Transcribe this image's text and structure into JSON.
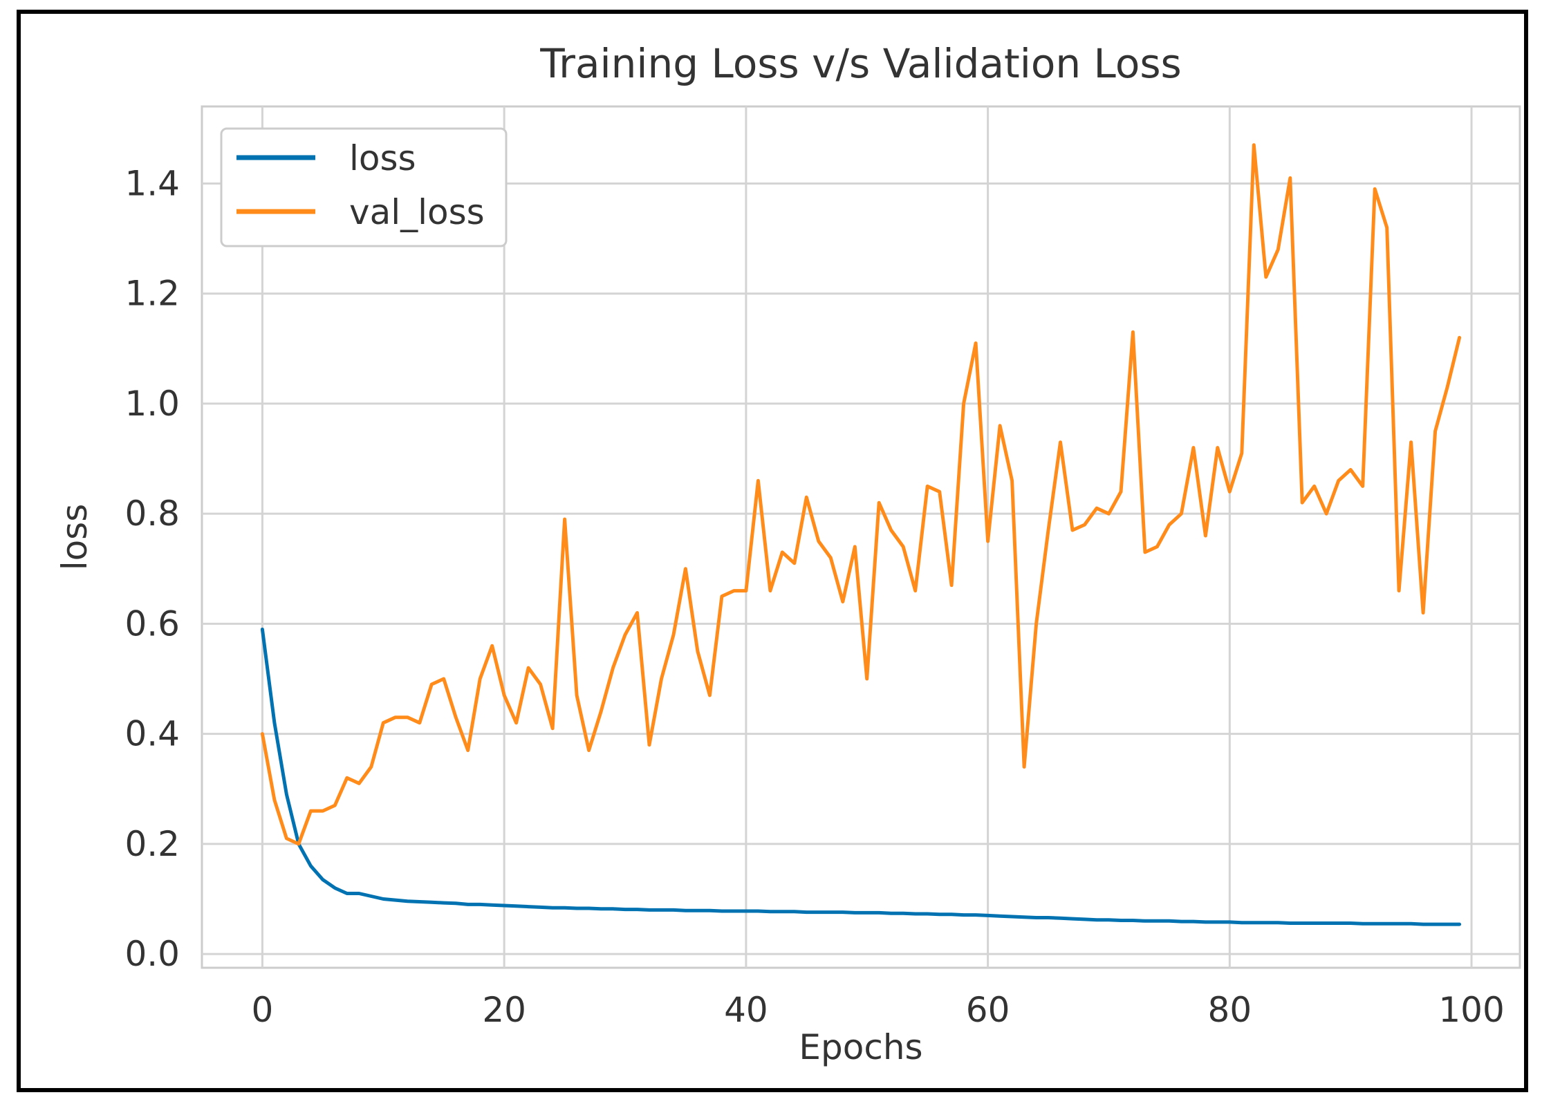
{
  "chart_data": {
    "type": "line",
    "title": "Training Loss v/s Validation Loss",
    "xlabel": "Epochs",
    "ylabel": "loss",
    "xlim": [
      -5,
      104
    ],
    "ylim": [
      -0.025,
      1.54
    ],
    "xticks": [
      0,
      20,
      40,
      60,
      80,
      100
    ],
    "yticks": [
      0.0,
      0.2,
      0.4,
      0.6,
      0.8,
      1.0,
      1.2,
      1.4
    ],
    "xtick_labels": [
      "0",
      "20",
      "40",
      "60",
      "80",
      "100"
    ],
    "ytick_labels": [
      "0.0",
      "0.2",
      "0.4",
      "0.6",
      "0.8",
      "1.0",
      "1.2",
      "1.4"
    ],
    "grid": true,
    "legend_position": "top-left",
    "x": [
      0,
      1,
      2,
      3,
      4,
      5,
      6,
      7,
      8,
      9,
      10,
      11,
      12,
      13,
      14,
      15,
      16,
      17,
      18,
      19,
      20,
      21,
      22,
      23,
      24,
      25,
      26,
      27,
      28,
      29,
      30,
      31,
      32,
      33,
      34,
      35,
      36,
      37,
      38,
      39,
      40,
      41,
      42,
      43,
      44,
      45,
      46,
      47,
      48,
      49,
      50,
      51,
      52,
      53,
      54,
      55,
      56,
      57,
      58,
      59,
      60,
      61,
      62,
      63,
      64,
      65,
      66,
      67,
      68,
      69,
      70,
      71,
      72,
      73,
      74,
      75,
      76,
      77,
      78,
      79,
      80,
      81,
      82,
      83,
      84,
      85,
      86,
      87,
      88,
      89,
      90,
      91,
      92,
      93,
      94,
      95,
      96,
      97,
      98,
      99
    ],
    "series": [
      {
        "name": "loss",
        "color": "#0072B2",
        "values": [
          0.59,
          0.42,
          0.29,
          0.2,
          0.16,
          0.135,
          0.12,
          0.11,
          0.11,
          0.105,
          0.1,
          0.098,
          0.096,
          0.095,
          0.094,
          0.093,
          0.092,
          0.09,
          0.09,
          0.089,
          0.088,
          0.087,
          0.086,
          0.085,
          0.084,
          0.084,
          0.083,
          0.083,
          0.082,
          0.082,
          0.081,
          0.081,
          0.08,
          0.08,
          0.08,
          0.079,
          0.079,
          0.079,
          0.078,
          0.078,
          0.078,
          0.078,
          0.077,
          0.077,
          0.077,
          0.076,
          0.076,
          0.076,
          0.076,
          0.075,
          0.075,
          0.075,
          0.074,
          0.074,
          0.073,
          0.073,
          0.072,
          0.072,
          0.071,
          0.071,
          0.07,
          0.069,
          0.068,
          0.067,
          0.066,
          0.066,
          0.065,
          0.064,
          0.063,
          0.062,
          0.062,
          0.061,
          0.061,
          0.06,
          0.06,
          0.06,
          0.059,
          0.059,
          0.058,
          0.058,
          0.058,
          0.057,
          0.057,
          0.057,
          0.057,
          0.056,
          0.056,
          0.056,
          0.056,
          0.056,
          0.056,
          0.055,
          0.055,
          0.055,
          0.055,
          0.055,
          0.054,
          0.054,
          0.054,
          0.054
        ]
      },
      {
        "name": "val_loss",
        "color": "#FF8C1A",
        "values": [
          0.4,
          0.28,
          0.21,
          0.2,
          0.26,
          0.26,
          0.27,
          0.32,
          0.31,
          0.34,
          0.42,
          0.43,
          0.43,
          0.42,
          0.49,
          0.5,
          0.43,
          0.37,
          0.5,
          0.56,
          0.47,
          0.42,
          0.52,
          0.49,
          0.41,
          0.79,
          0.47,
          0.37,
          0.44,
          0.52,
          0.58,
          0.62,
          0.38,
          0.5,
          0.58,
          0.7,
          0.55,
          0.47,
          0.65,
          0.66,
          0.66,
          0.86,
          0.66,
          0.73,
          0.71,
          0.83,
          0.75,
          0.72,
          0.64,
          0.74,
          0.5,
          0.82,
          0.77,
          0.74,
          0.66,
          0.85,
          0.84,
          0.67,
          1.0,
          1.11,
          0.75,
          0.96,
          0.86,
          0.34,
          0.6,
          0.77,
          0.93,
          0.77,
          0.78,
          0.81,
          0.8,
          0.84,
          1.13,
          0.73,
          0.74,
          0.78,
          0.8,
          0.92,
          0.76,
          0.92,
          0.84,
          0.91,
          1.47,
          1.23,
          1.28,
          1.41,
          0.82,
          0.85,
          0.8,
          0.86,
          0.88,
          0.85,
          1.39,
          1.32,
          0.66,
          0.93,
          0.62,
          0.95,
          1.03,
          1.12
        ]
      }
    ]
  }
}
